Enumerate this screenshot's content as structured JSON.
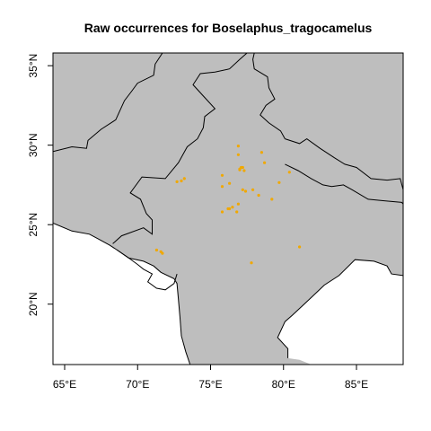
{
  "title": "Raw occurrences for Boselaphus_tragocamelus",
  "colors": {
    "land": "#bebebe",
    "border": "#000000",
    "points": "#f0a800",
    "sea": "#ffffff"
  },
  "chart_data": {
    "type": "scatter",
    "title": "Raw occurrences for Boselaphus_tragocamelus",
    "xlim": [
      64.2,
      88.2
    ],
    "ylim": [
      16.2,
      35.8
    ],
    "x_ticks": [
      65,
      70,
      75,
      80,
      85
    ],
    "x_tick_labels": [
      "65°E",
      "70°E",
      "75°E",
      "80°E",
      "85°E"
    ],
    "y_ticks": [
      20,
      25,
      30,
      35
    ],
    "y_tick_labels": [
      "20°N",
      "25°N",
      "30°N",
      "35°N"
    ],
    "land_polygon": [
      [
        64.2,
        16.2
      ],
      [
        64.2,
        35.8
      ],
      [
        88.2,
        35.8
      ],
      [
        88.2,
        16.2
      ],
      [
        81.9,
        16.2
      ],
      [
        81.1,
        16.5
      ],
      [
        80.3,
        16.6
      ],
      [
        80.3,
        17.2
      ],
      [
        79.6,
        17.9
      ],
      [
        80.1,
        18.9
      ],
      [
        80.6,
        19.3
      ],
      [
        81.3,
        19.9
      ],
      [
        82.0,
        20.5
      ],
      [
        82.8,
        21.2
      ],
      [
        83.8,
        21.8
      ],
      [
        84.9,
        22.8
      ],
      [
        86.2,
        22.7
      ],
      [
        87.1,
        22.4
      ],
      [
        87.4,
        21.9
      ],
      [
        88.2,
        21.8
      ],
      [
        88.2,
        16.2
      ],
      [
        71.3,
        16.2
      ],
      [
        71.3,
        35.8
      ],
      [
        64.2,
        35.8
      ]
    ],
    "coastline": [
      [
        64.2,
        25.1
      ],
      [
        65.5,
        24.6
      ],
      [
        66.7,
        24.4
      ],
      [
        67.3,
        24.1
      ],
      [
        68.1,
        23.7
      ],
      [
        68.6,
        23.4
      ],
      [
        69.4,
        22.9
      ],
      [
        70.4,
        22.7
      ],
      [
        71.1,
        22.4
      ],
      [
        71.6,
        22.0
      ],
      [
        72.5,
        21.6
      ],
      [
        72.7,
        21.3
      ],
      [
        72.8,
        20.3
      ],
      [
        72.9,
        19.2
      ],
      [
        73.0,
        18.0
      ],
      [
        73.3,
        17.0
      ],
      [
        73.6,
        16.2
      ]
    ],
    "gulf_kutch": [
      [
        68.6,
        23.4
      ],
      [
        69.4,
        22.9
      ],
      [
        70.0,
        22.5
      ],
      [
        70.4,
        22.2
      ],
      [
        71.0,
        21.9
      ],
      [
        70.7,
        21.4
      ],
      [
        71.3,
        21.0
      ],
      [
        71.9,
        20.9
      ],
      [
        72.5,
        21.3
      ],
      [
        72.7,
        21.9
      ]
    ],
    "borders": [
      [
        [
          64.2,
          29.6
        ],
        [
          65.5,
          29.9
        ],
        [
          66.5,
          29.8
        ],
        [
          66.6,
          30.3
        ],
        [
          67.5,
          31.0
        ],
        [
          68.5,
          31.6
        ],
        [
          69.1,
          32.8
        ],
        [
          69.6,
          33.4
        ],
        [
          70.0,
          33.9
        ],
        [
          71.1,
          34.4
        ],
        [
          71.2,
          35.1
        ],
        [
          71.7,
          35.8
        ]
      ],
      [
        [
          68.3,
          23.8
        ],
        [
          68.9,
          24.3
        ],
        [
          70.4,
          24.8
        ],
        [
          71.0,
          24.4
        ],
        [
          71.0,
          25.3
        ],
        [
          70.6,
          25.7
        ],
        [
          70.2,
          26.6
        ],
        [
          69.5,
          27.0
        ],
        [
          70.3,
          28.0
        ],
        [
          71.9,
          27.9
        ],
        [
          72.8,
          28.9
        ],
        [
          73.4,
          29.9
        ],
        [
          74.1,
          30.4
        ],
        [
          74.5,
          31.1
        ],
        [
          74.6,
          31.8
        ],
        [
          75.3,
          32.3
        ],
        [
          74.6,
          33.0
        ],
        [
          73.8,
          33.8
        ],
        [
          74.3,
          34.5
        ],
        [
          75.3,
          34.6
        ],
        [
          76.3,
          34.8
        ],
        [
          77.0,
          35.4
        ],
        [
          77.5,
          35.8
        ]
      ],
      [
        [
          80.1,
          30.4
        ],
        [
          81.1,
          30.1
        ],
        [
          81.6,
          30.4
        ],
        [
          82.5,
          29.8
        ],
        [
          83.5,
          29.2
        ],
        [
          84.2,
          28.8
        ],
        [
          85.0,
          28.6
        ],
        [
          86.0,
          27.9
        ],
        [
          87.1,
          27.8
        ],
        [
          88.0,
          27.9
        ],
        [
          88.2,
          27.2
        ]
      ],
      [
        [
          80.1,
          30.4
        ],
        [
          79.8,
          30.9
        ],
        [
          79.0,
          31.4
        ],
        [
          78.4,
          31.9
        ],
        [
          78.8,
          32.5
        ],
        [
          79.4,
          32.9
        ],
        [
          79.0,
          33.6
        ],
        [
          78.9,
          34.3
        ],
        [
          78.0,
          34.8
        ],
        [
          77.9,
          35.4
        ],
        [
          78.0,
          35.8
        ]
      ],
      [
        [
          80.1,
          28.8
        ],
        [
          81.0,
          28.4
        ],
        [
          81.9,
          27.9
        ],
        [
          82.7,
          27.5
        ],
        [
          83.3,
          27.4
        ],
        [
          84.1,
          27.5
        ],
        [
          84.7,
          27.2
        ],
        [
          85.8,
          26.6
        ],
        [
          86.9,
          26.5
        ],
        [
          88.1,
          26.4
        ],
        [
          88.2,
          26.3
        ]
      ]
    ],
    "points": [
      [
        77.2,
        28.6
      ],
      [
        77.0,
        28.5
      ],
      [
        77.3,
        28.4
      ],
      [
        77.1,
        28.6
      ],
      [
        77.0,
        28.45
      ],
      [
        76.9,
        29.95
      ],
      [
        76.9,
        29.4
      ],
      [
        78.5,
        29.55
      ],
      [
        78.7,
        28.9
      ],
      [
        75.8,
        28.1
      ],
      [
        75.8,
        27.4
      ],
      [
        76.3,
        27.6
      ],
      [
        77.2,
        27.2
      ],
      [
        77.4,
        27.1
      ],
      [
        77.9,
        27.2
      ],
      [
        78.3,
        26.85
      ],
      [
        79.2,
        26.6
      ],
      [
        79.7,
        27.65
      ],
      [
        76.5,
        26.1
      ],
      [
        76.3,
        26.0
      ],
      [
        76.2,
        26.0
      ],
      [
        75.8,
        25.8
      ],
      [
        76.9,
        26.3
      ],
      [
        76.8,
        25.8
      ],
      [
        72.7,
        27.7
      ],
      [
        73.2,
        27.9
      ],
      [
        73.0,
        27.75
      ],
      [
        71.3,
        23.4
      ],
      [
        71.6,
        23.3
      ],
      [
        71.7,
        23.2
      ],
      [
        77.8,
        22.6
      ],
      [
        81.1,
        23.6
      ],
      [
        80.4,
        28.3
      ]
    ]
  }
}
